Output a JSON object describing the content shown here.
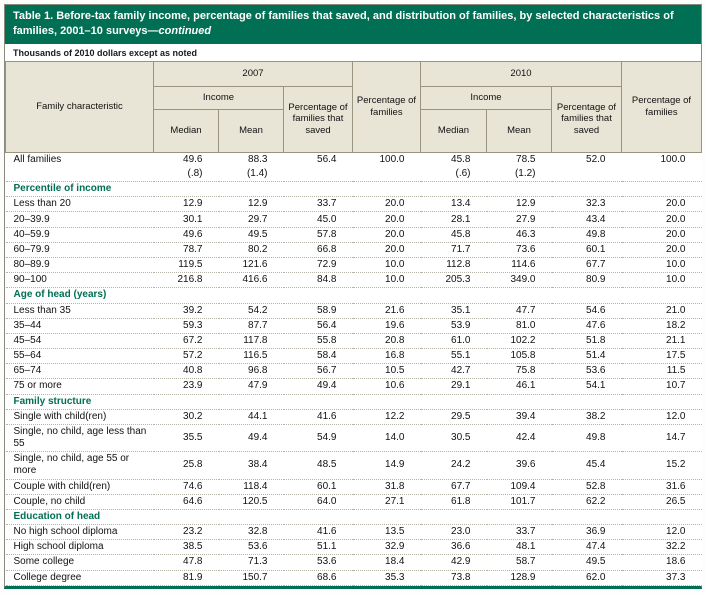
{
  "colors": {
    "teal": "#006F53",
    "header_bg": "#E9E5D6",
    "body_text": "#111111",
    "title_text": "#FFFFFF"
  },
  "title": {
    "main": "Table 1. Before-tax family income, percentage of families that saved, and distribution of families, by selected characteristics of families, 2001–10 surveys—",
    "continued": "continued"
  },
  "subtitle": "Thousands of 2010 dollars except as noted",
  "header": {
    "family_characteristic": "Family characteristic",
    "years": [
      "2007",
      "2010"
    ],
    "income": "Income",
    "median": "Median",
    "mean": "Mean",
    "pct_saved": "Percentage of families that saved",
    "pct_families": "Percentage of families"
  },
  "table": {
    "columns": [
      "Median 2007",
      "Mean 2007",
      "Percentage of families that saved 2007",
      "Percentage of families 2007",
      "Median 2010",
      "Mean 2010",
      "Percentage of families that saved 2010",
      "Percentage of families 2010"
    ],
    "rows": [
      {
        "type": "data",
        "noborder": true,
        "label": "All families",
        "values": [
          "49.6",
          "88.3",
          "56.4",
          "100.0",
          "45.8",
          "78.5",
          "52.0",
          "100.0"
        ]
      },
      {
        "type": "se",
        "label": "",
        "values": [
          "(.8)",
          "(1.4)",
          "",
          "",
          "(.6)",
          "(1.2)",
          "",
          ""
        ]
      },
      {
        "type": "section",
        "label": "Percentile of income"
      },
      {
        "type": "data",
        "label": "Less than 20",
        "values": [
          "12.9",
          "12.9",
          "33.7",
          "20.0",
          "13.4",
          "12.9",
          "32.3",
          "20.0"
        ]
      },
      {
        "type": "data",
        "label": "20–39.9",
        "values": [
          "30.1",
          "29.7",
          "45.0",
          "20.0",
          "28.1",
          "27.9",
          "43.4",
          "20.0"
        ]
      },
      {
        "type": "data",
        "label": "40–59.9",
        "values": [
          "49.6",
          "49.5",
          "57.8",
          "20.0",
          "45.8",
          "46.3",
          "49.8",
          "20.0"
        ]
      },
      {
        "type": "data",
        "label": "60–79.9",
        "values": [
          "78.7",
          "80.2",
          "66.8",
          "20.0",
          "71.7",
          "73.6",
          "60.1",
          "20.0"
        ]
      },
      {
        "type": "data",
        "label": "80–89.9",
        "values": [
          "119.5",
          "121.6",
          "72.9",
          "10.0",
          "112.8",
          "114.6",
          "67.7",
          "10.0"
        ]
      },
      {
        "type": "data",
        "label": "90–100",
        "values": [
          "216.8",
          "416.6",
          "84.8",
          "10.0",
          "205.3",
          "349.0",
          "80.9",
          "10.0"
        ]
      },
      {
        "type": "section",
        "label": "Age of head (years)"
      },
      {
        "type": "data",
        "label": "Less than 35",
        "values": [
          "39.2",
          "54.2",
          "58.9",
          "21.6",
          "35.1",
          "47.7",
          "54.6",
          "21.0"
        ]
      },
      {
        "type": "data",
        "label": "35–44",
        "values": [
          "59.3",
          "87.7",
          "56.4",
          "19.6",
          "53.9",
          "81.0",
          "47.6",
          "18.2"
        ]
      },
      {
        "type": "data",
        "label": "45–54",
        "values": [
          "67.2",
          "117.8",
          "55.8",
          "20.8",
          "61.0",
          "102.2",
          "51.8",
          "21.1"
        ]
      },
      {
        "type": "data",
        "label": "55–64",
        "values": [
          "57.2",
          "116.5",
          "58.4",
          "16.8",
          "55.1",
          "105.8",
          "51.4",
          "17.5"
        ]
      },
      {
        "type": "data",
        "label": "65–74",
        "values": [
          "40.8",
          "96.8",
          "56.7",
          "10.5",
          "42.7",
          "75.8",
          "53.6",
          "11.5"
        ]
      },
      {
        "type": "data",
        "label": "75 or more",
        "values": [
          "23.9",
          "47.9",
          "49.4",
          "10.6",
          "29.1",
          "46.1",
          "54.1",
          "10.7"
        ]
      },
      {
        "type": "section",
        "label": "Family structure"
      },
      {
        "type": "data",
        "label": "Single with child(ren)",
        "values": [
          "30.2",
          "44.1",
          "41.6",
          "12.2",
          "29.5",
          "39.4",
          "38.2",
          "12.0"
        ]
      },
      {
        "type": "data",
        "label": "Single, no child, age less than 55",
        "values": [
          "35.5",
          "49.4",
          "54.9",
          "14.0",
          "30.5",
          "42.4",
          "49.8",
          "14.7"
        ]
      },
      {
        "type": "data",
        "label": "Single, no child, age 55 or more",
        "values": [
          "25.8",
          "38.4",
          "48.5",
          "14.9",
          "24.2",
          "39.6",
          "45.4",
          "15.2"
        ]
      },
      {
        "type": "data",
        "label": "Couple with child(ren)",
        "values": [
          "74.6",
          "118.4",
          "60.1",
          "31.8",
          "67.7",
          "109.4",
          "52.8",
          "31.6"
        ]
      },
      {
        "type": "data",
        "label": "Couple, no child",
        "values": [
          "64.6",
          "120.5",
          "64.0",
          "27.1",
          "61.8",
          "101.7",
          "62.2",
          "26.5"
        ]
      },
      {
        "type": "section",
        "label": "Education of head"
      },
      {
        "type": "data",
        "label": "No high school diploma",
        "values": [
          "23.2",
          "32.8",
          "41.6",
          "13.5",
          "23.0",
          "33.7",
          "36.9",
          "12.0"
        ]
      },
      {
        "type": "data",
        "label": "High school diploma",
        "values": [
          "38.5",
          "53.6",
          "51.1",
          "32.9",
          "36.6",
          "48.1",
          "47.4",
          "32.2"
        ]
      },
      {
        "type": "data",
        "label": "Some college",
        "values": [
          "47.8",
          "71.3",
          "53.6",
          "18.4",
          "42.9",
          "58.7",
          "49.5",
          "18.6"
        ]
      },
      {
        "type": "data",
        "label": "College degree",
        "values": [
          "81.9",
          "150.7",
          "68.6",
          "35.3",
          "73.8",
          "128.9",
          "62.0",
          "37.3"
        ]
      }
    ]
  }
}
